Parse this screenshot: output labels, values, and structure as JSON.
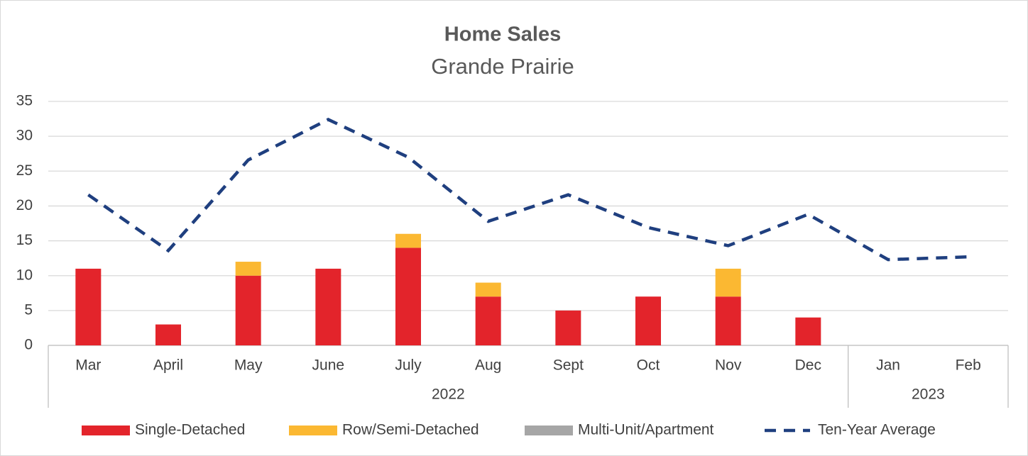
{
  "chart_data": {
    "type": "stacked_bar_line",
    "title": "Home Sales",
    "subtitle": "Grande Prairie",
    "categories": [
      "Mar",
      "April",
      "May",
      "June",
      "July",
      "Aug",
      "Sept",
      "Oct",
      "Nov",
      "Dec",
      "Jan",
      "Feb"
    ],
    "x_groups": [
      {
        "label": "2022",
        "span": 10
      },
      {
        "label": "2023",
        "span": 2
      }
    ],
    "series": [
      {
        "name": "Single-Detached",
        "color": "#e3242b",
        "kind": "bar",
        "values": [
          11,
          3,
          10,
          11,
          14,
          7,
          5,
          7,
          7,
          4,
          null,
          null
        ]
      },
      {
        "name": "Row/Semi-Detached",
        "color": "#fbb832",
        "kind": "bar",
        "values": [
          0,
          0,
          2,
          0,
          2,
          2,
          0,
          0,
          4,
          0,
          null,
          null
        ]
      },
      {
        "name": "Multi-Unit/Apartment",
        "color": "#a6a6a6",
        "kind": "bar",
        "values": [
          0,
          0,
          0,
          0,
          0,
          0,
          0,
          0,
          0,
          0,
          null,
          null
        ]
      },
      {
        "name": "Ten-Year Average",
        "color": "#1f3f7f",
        "kind": "line",
        "values": [
          21.6,
          13.6,
          26.6,
          32.4,
          27.0,
          17.8,
          21.6,
          16.9,
          14.3,
          18.8,
          12.3,
          12.7
        ]
      }
    ],
    "ylim": [
      0,
      35
    ],
    "yticks": [
      0,
      5,
      10,
      15,
      20,
      25,
      30,
      35
    ],
    "grid": true,
    "legend": "bottom"
  }
}
